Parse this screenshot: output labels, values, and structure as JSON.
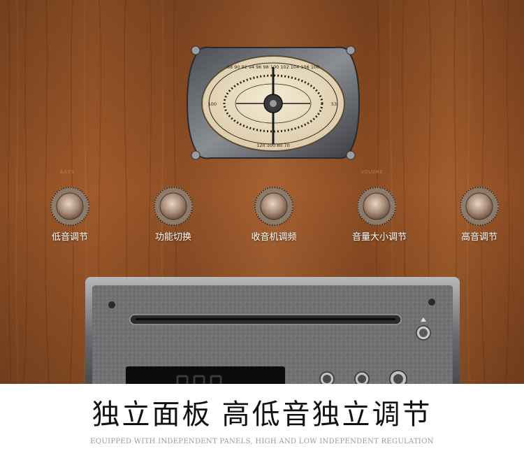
{
  "radio_dial": {
    "scale_top": [
      "88",
      "90",
      "92",
      "94",
      "96",
      "98",
      "100",
      "102",
      "104",
      "106",
      "108"
    ],
    "scale_bottom": [
      "120",
      "100",
      "80",
      "70"
    ],
    "scale_left": "100",
    "scale_right": "53"
  },
  "knobs": [
    {
      "label": "低音调节",
      "marker": "BASS"
    },
    {
      "label": "功能切换",
      "marker": ""
    },
    {
      "label": "收音机调频",
      "marker": ""
    },
    {
      "label": "音量大小调节",
      "marker": "VOLUME"
    },
    {
      "label": "高音调节",
      "marker": ""
    }
  ],
  "headline": {
    "part1": "独立面板",
    "part2": "高低音独立调节"
  },
  "subtitle": "EQUIPPED WITH INDEPENDENT PANELS, HIGH AND LOW INDEPENDENT REGULATION",
  "colors": {
    "wood": "#9a5628",
    "label_text": "#ffffff",
    "headline_text": "#111111",
    "subtitle_text": "#9a9a9a"
  }
}
